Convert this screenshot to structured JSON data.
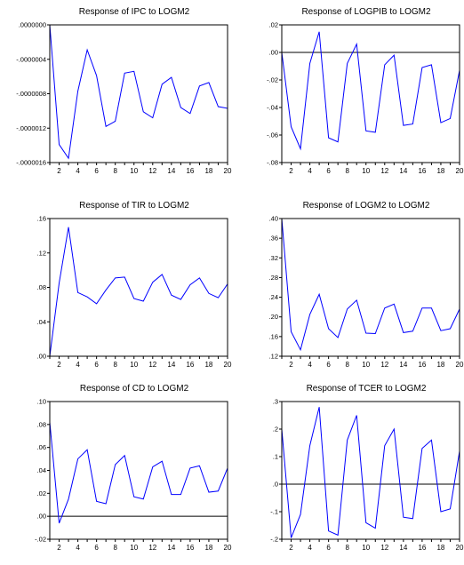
{
  "figure": {
    "line_color": "#0000FF",
    "zero_line_color": "#000000",
    "frame_color": "#000000"
  },
  "chart_data": [
    {
      "type": "line",
      "title": "Response of IPC to LOGM2",
      "xlabel": "",
      "ylabel": "",
      "x": [
        1,
        2,
        3,
        4,
        5,
        6,
        7,
        8,
        9,
        10,
        11,
        12,
        13,
        14,
        15,
        16,
        17,
        18,
        19,
        20
      ],
      "xticks": [
        2,
        4,
        6,
        8,
        10,
        12,
        14,
        16,
        18,
        20
      ],
      "ylim": [
        -1.6e-06,
        0.0
      ],
      "yticks": [
        0.0,
        -4e-07,
        -8e-07,
        -1.2e-06,
        -1.6e-06
      ],
      "ytick_labels": [
        ".0000000",
        "-.0000004",
        "-.0000008",
        "-.0000012",
        "-.0000016"
      ],
      "zero_line": false,
      "series": [
        {
          "values": [
            0.0,
            -1.39e-06,
            -1.55e-06,
            -7.7e-07,
            -2.9e-07,
            -5.9e-07,
            -1.18e-06,
            -1.12e-06,
            -5.6e-07,
            -5.4e-07,
            -1.01e-06,
            -1.08e-06,
            -6.9e-07,
            -6.1e-07,
            -9.6e-07,
            -1.03e-06,
            -7.1e-07,
            -6.7e-07,
            -9.5e-07,
            -9.7e-07
          ]
        }
      ]
    },
    {
      "type": "line",
      "title": "Response of LOGPIB to LOGM2",
      "xlabel": "",
      "ylabel": "",
      "x": [
        1,
        2,
        3,
        4,
        5,
        6,
        7,
        8,
        9,
        10,
        11,
        12,
        13,
        14,
        15,
        16,
        17,
        18,
        19,
        20
      ],
      "xticks": [
        2,
        4,
        6,
        8,
        10,
        12,
        14,
        16,
        18,
        20
      ],
      "ylim": [
        -0.08,
        0.02
      ],
      "yticks": [
        0.02,
        0.0,
        -0.02,
        -0.04,
        -0.06,
        -0.08
      ],
      "ytick_labels": [
        ".02",
        ".00",
        "-.02",
        "-.04",
        "-.06",
        "-.08"
      ],
      "zero_line": true,
      "series": [
        {
          "values": [
            0.0,
            -0.054,
            -0.07,
            -0.008,
            0.015,
            -0.062,
            -0.065,
            -0.008,
            0.006,
            -0.057,
            -0.058,
            -0.009,
            -0.002,
            -0.053,
            -0.052,
            -0.011,
            -0.009,
            -0.051,
            -0.048,
            -0.013
          ]
        }
      ]
    },
    {
      "type": "line",
      "title": "Response of TIR to LOGM2",
      "xlabel": "",
      "ylabel": "",
      "x": [
        1,
        2,
        3,
        4,
        5,
        6,
        7,
        8,
        9,
        10,
        11,
        12,
        13,
        14,
        15,
        16,
        17,
        18,
        19,
        20
      ],
      "xticks": [
        2,
        4,
        6,
        8,
        10,
        12,
        14,
        16,
        18,
        20
      ],
      "ylim": [
        0.0,
        0.16
      ],
      "yticks": [
        0.16,
        0.12,
        0.08,
        0.04,
        0.0
      ],
      "ytick_labels": [
        ".16",
        ".12",
        ".08",
        ".04",
        ".00"
      ],
      "zero_line": false,
      "series": [
        {
          "values": [
            0.0,
            0.085,
            0.15,
            0.074,
            0.069,
            0.061,
            0.077,
            0.091,
            0.092,
            0.067,
            0.064,
            0.086,
            0.095,
            0.071,
            0.066,
            0.083,
            0.091,
            0.073,
            0.068,
            0.084
          ]
        }
      ]
    },
    {
      "type": "line",
      "title": "Response of LOGM2 to LOGM2",
      "xlabel": "",
      "ylabel": "",
      "x": [
        1,
        2,
        3,
        4,
        5,
        6,
        7,
        8,
        9,
        10,
        11,
        12,
        13,
        14,
        15,
        16,
        17,
        18,
        19,
        20
      ],
      "xticks": [
        2,
        4,
        6,
        8,
        10,
        12,
        14,
        16,
        18,
        20
      ],
      "ylim": [
        0.12,
        0.4
      ],
      "yticks": [
        0.4,
        0.36,
        0.32,
        0.28,
        0.24,
        0.2,
        0.16,
        0.12
      ],
      "ytick_labels": [
        ".40",
        ".36",
        ".32",
        ".28",
        ".24",
        ".20",
        ".16",
        ".12"
      ],
      "zero_line": false,
      "series": [
        {
          "values": [
            0.4,
            0.17,
            0.133,
            0.205,
            0.246,
            0.176,
            0.158,
            0.216,
            0.234,
            0.167,
            0.166,
            0.218,
            0.226,
            0.168,
            0.171,
            0.218,
            0.218,
            0.172,
            0.176,
            0.216
          ]
        }
      ]
    },
    {
      "type": "line",
      "title": "Response of CD to LOGM2",
      "xlabel": "",
      "ylabel": "",
      "x": [
        1,
        2,
        3,
        4,
        5,
        6,
        7,
        8,
        9,
        10,
        11,
        12,
        13,
        14,
        15,
        16,
        17,
        18,
        19,
        20
      ],
      "xticks": [
        2,
        4,
        6,
        8,
        10,
        12,
        14,
        16,
        18,
        20
      ],
      "ylim": [
        -0.02,
        0.1
      ],
      "yticks": [
        0.1,
        0.08,
        0.06,
        0.04,
        0.02,
        0.0,
        -0.02
      ],
      "ytick_labels": [
        ".10",
        ".08",
        ".06",
        ".04",
        ".02",
        ".00",
        "-.02"
      ],
      "zero_line": true,
      "series": [
        {
          "values": [
            0.082,
            -0.006,
            0.015,
            0.05,
            0.058,
            0.013,
            0.011,
            0.045,
            0.053,
            0.017,
            0.015,
            0.043,
            0.048,
            0.019,
            0.019,
            0.042,
            0.044,
            0.021,
            0.022,
            0.042
          ]
        }
      ]
    },
    {
      "type": "line",
      "title": "Response of TCER to LOGM2",
      "xlabel": "",
      "ylabel": "",
      "x": [
        1,
        2,
        3,
        4,
        5,
        6,
        7,
        8,
        9,
        10,
        11,
        12,
        13,
        14,
        15,
        16,
        17,
        18,
        19,
        20
      ],
      "xticks": [
        2,
        4,
        6,
        8,
        10,
        12,
        14,
        16,
        18,
        20
      ],
      "ylim": [
        -0.2,
        0.3
      ],
      "yticks": [
        0.3,
        0.2,
        0.1,
        0.0,
        -0.1,
        -0.2
      ],
      "ytick_labels": [
        ".3",
        ".2",
        ".1",
        ".0",
        "-.1",
        "-.2"
      ],
      "zero_line": true,
      "series": [
        {
          "values": [
            0.2,
            -0.195,
            -0.11,
            0.14,
            0.28,
            -0.17,
            -0.185,
            0.16,
            0.25,
            -0.14,
            -0.16,
            0.14,
            0.2,
            -0.12,
            -0.125,
            0.13,
            0.16,
            -0.1,
            -0.09,
            0.12
          ]
        }
      ]
    }
  ]
}
